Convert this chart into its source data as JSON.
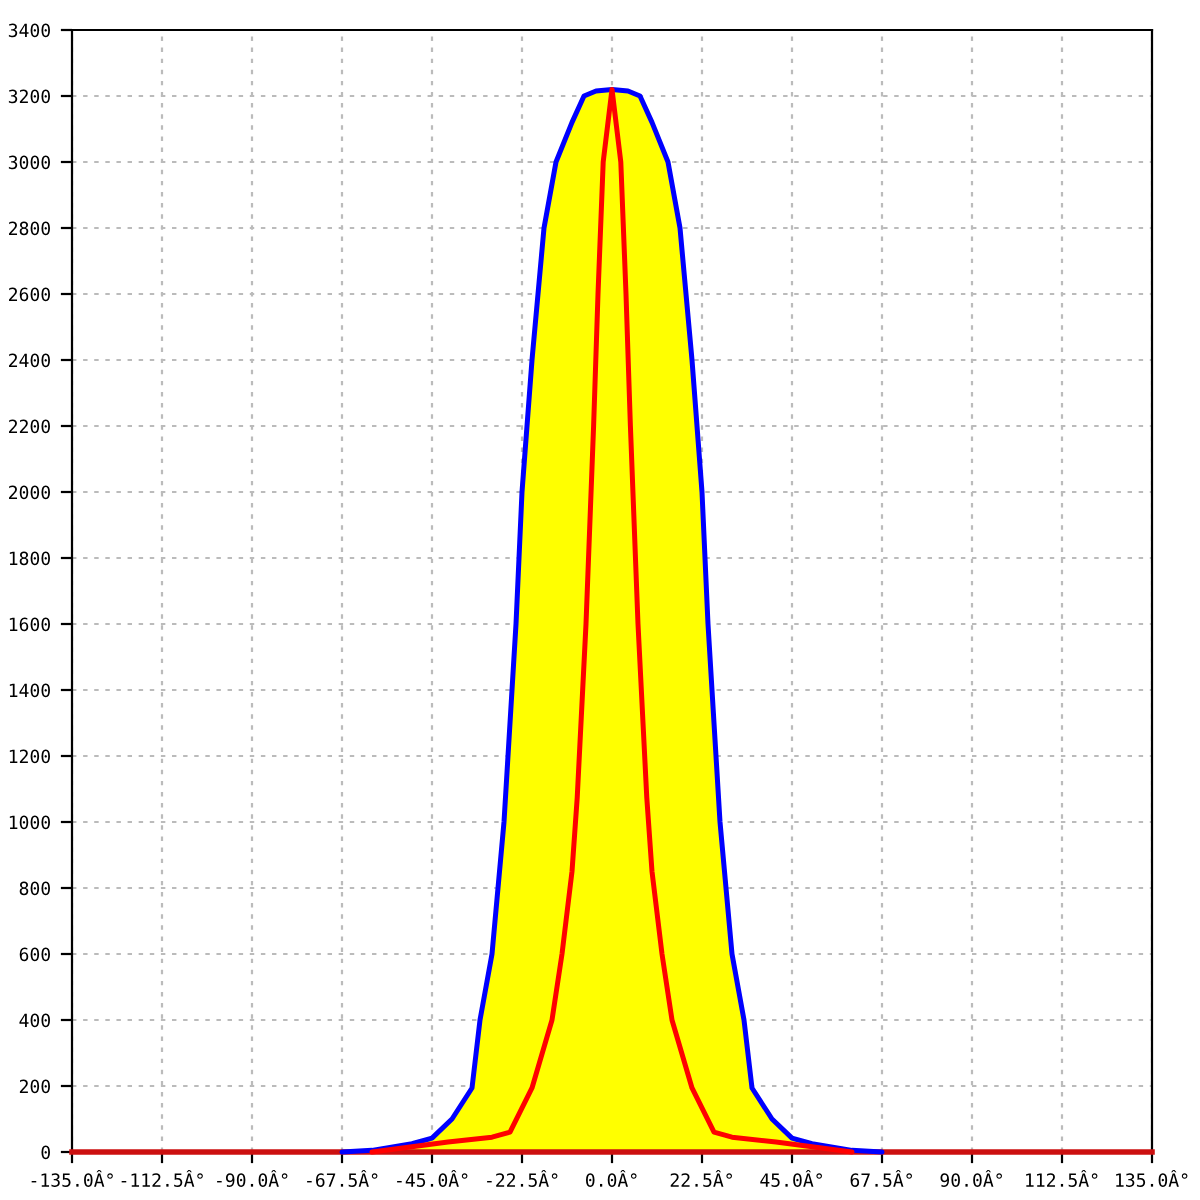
{
  "chart_data": {
    "type": "line",
    "series": [
      {
        "type": "area",
        "color": "#ffff00",
        "x": [
          -135,
          -90,
          -67.5,
          -60,
          -50,
          -45,
          -40,
          -35,
          -33,
          -30,
          -27,
          -24,
          -22.5,
          -20,
          -17,
          -14,
          -10,
          -7,
          -4,
          0,
          4,
          7,
          10,
          14,
          17,
          20,
          22.5,
          24,
          27,
          30,
          33,
          35,
          40,
          45,
          50,
          60,
          67.5,
          90,
          135
        ],
        "values": [
          0,
          0,
          0,
          5,
          25,
          42,
          100,
          194,
          400,
          600,
          1000,
          1600,
          2000,
          2400,
          2800,
          3000,
          3120,
          3200,
          3215,
          3220,
          3215,
          3200,
          3120,
          3000,
          2800,
          2400,
          2000,
          1600,
          1000,
          600,
          400,
          194,
          100,
          42,
          25,
          5,
          0,
          0,
          0
        ]
      },
      {
        "color": "#0000ff",
        "x": [
          -67.5,
          -60,
          -50,
          -45,
          -40,
          -35,
          -33,
          -30,
          -27,
          -24,
          -22.5,
          -20,
          -17,
          -14,
          -10,
          -7,
          -4,
          0,
          4,
          7,
          10,
          14,
          17,
          20,
          22.5,
          24,
          27,
          30,
          33,
          35,
          40,
          45,
          50,
          60,
          67.5
        ],
        "values": [
          0,
          5,
          25,
          42,
          100,
          194,
          400,
          600,
          1000,
          1600,
          2000,
          2400,
          2800,
          3000,
          3120,
          3200,
          3215,
          3220,
          3215,
          3200,
          3120,
          3000,
          2800,
          2400,
          2000,
          1600,
          1000,
          600,
          400,
          194,
          100,
          42,
          25,
          5,
          0
        ]
      },
      {
        "color": "#ff0000",
        "x": [
          -60,
          -41,
          -30,
          -25.5,
          -20,
          -15,
          -12.5,
          -10,
          -8.7,
          -6.5,
          -4.6,
          -3.5,
          -2.2,
          0,
          2.2,
          3.5,
          4.6,
          6.5,
          8.7,
          10,
          12.5,
          15,
          20,
          25.5,
          30,
          41,
          60
        ],
        "values": [
          0,
          30,
          45,
          60,
          194,
          400,
          600,
          850,
          1073,
          1600,
          2200,
          2600,
          3000,
          3220,
          3000,
          2600,
          2200,
          1600,
          1073,
          850,
          600,
          400,
          194,
          60,
          45,
          30,
          0
        ]
      }
    ],
    "xlim": [
      -135,
      135
    ],
    "xticks": [
      {
        "value": -135,
        "label": "-135.0Â°"
      },
      {
        "value": -112.5,
        "label": "-112.5Â°"
      },
      {
        "value": -90,
        "label": "-90.0Â°"
      },
      {
        "value": -67.5,
        "label": "-67.5Â°"
      },
      {
        "value": -45,
        "label": "-45.0Â°"
      },
      {
        "value": -22.5,
        "label": "-22.5Â°"
      },
      {
        "value": 0,
        "label": "0.0Â°"
      },
      {
        "value": 22.5,
        "label": "22.5Â°"
      },
      {
        "value": 45,
        "label": "45.0Â°"
      },
      {
        "value": 67.5,
        "label": "67.5Â°"
      },
      {
        "value": 90,
        "label": "90.0Â°"
      },
      {
        "value": 112.5,
        "label": "112.5Â°"
      },
      {
        "value": 135,
        "label": "135.0Â°"
      }
    ],
    "ylim": [
      0,
      3400
    ],
    "yticks": [
      0,
      200,
      400,
      600,
      800,
      1000,
      1200,
      1400,
      1600,
      1800,
      2000,
      2200,
      2400,
      2600,
      2800,
      3000,
      3200,
      3400
    ],
    "grid": true,
    "marker": "none",
    "line_style": "solid"
  }
}
